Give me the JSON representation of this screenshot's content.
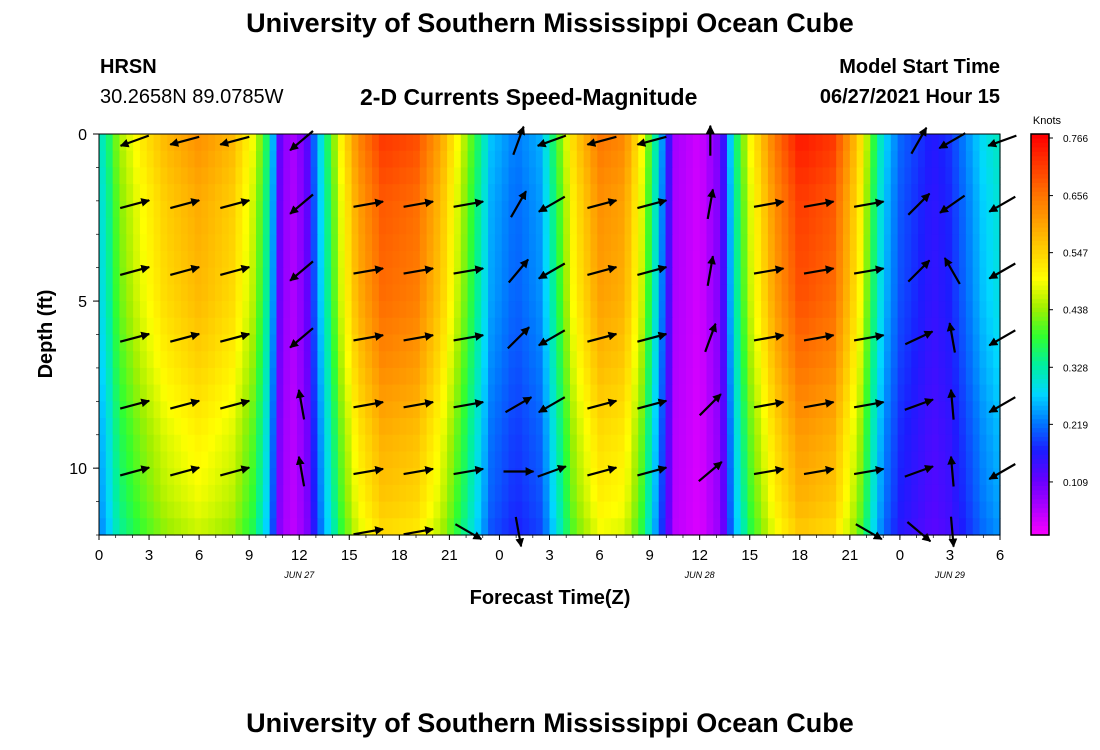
{
  "header": {
    "title": "University of Southern Mississippi Ocean Cube",
    "station": "HRSN",
    "coords": "30.2658N  89.0785W",
    "plot_title": "2-D Currents Speed-Magnitude",
    "model_start_label": "Model Start Time",
    "model_start_value": "06/27/2021 Hour 15"
  },
  "footer": {
    "title": "University of Southern Mississippi Ocean Cube"
  },
  "chart_data": {
    "type": "heatmap",
    "title": "2-D Currents Speed-Magnitude",
    "xlabel": "Forecast Time(Z)",
    "ylabel": "Depth (ft)",
    "x_range_hours": [
      0,
      54
    ],
    "y_range_ft": [
      0,
      12
    ],
    "x_ticks": [
      {
        "h": 0,
        "label": "0"
      },
      {
        "h": 3,
        "label": "3"
      },
      {
        "h": 6,
        "label": "6"
      },
      {
        "h": 9,
        "label": "9"
      },
      {
        "h": 12,
        "label": "12"
      },
      {
        "h": 15,
        "label": "15"
      },
      {
        "h": 18,
        "label": "18"
      },
      {
        "h": 21,
        "label": "21"
      },
      {
        "h": 24,
        "label": "0"
      },
      {
        "h": 27,
        "label": "3"
      },
      {
        "h": 30,
        "label": "6"
      },
      {
        "h": 33,
        "label": "9"
      },
      {
        "h": 36,
        "label": "12"
      },
      {
        "h": 39,
        "label": "15"
      },
      {
        "h": 42,
        "label": "18"
      },
      {
        "h": 45,
        "label": "21"
      },
      {
        "h": 48,
        "label": "0"
      },
      {
        "h": 51,
        "label": "3"
      },
      {
        "h": 54,
        "label": "6"
      }
    ],
    "date_labels": [
      {
        "h": 12,
        "label": "JUN 27"
      },
      {
        "h": 36,
        "label": "JUN 28"
      },
      {
        "h": 51,
        "label": "JUN 29"
      }
    ],
    "y_ticks": [
      {
        "ft": 0,
        "label": "0"
      },
      {
        "ft": 5,
        "label": "5"
      },
      {
        "ft": 10,
        "label": "10"
      }
    ],
    "colorbar": {
      "unit": "Knots",
      "min": 0.0,
      "max": 0.766,
      "ticks": [
        "0.766",
        "0.656",
        "0.547",
        "0.438",
        "0.328",
        "0.219",
        "0.109"
      ],
      "colors": [
        "#ff00ff",
        "#b000ff",
        "#6600ff",
        "#1c1cff",
        "#0078ff",
        "#00d8ff",
        "#00f0a0",
        "#30ff30",
        "#a0f000",
        "#ffff00",
        "#ffd000",
        "#ffa000",
        "#ff7000",
        "#ff3800",
        "#ff0000"
      ]
    },
    "speed_profile_by_hour": [
      {
        "h": 0,
        "s": 0.28
      },
      {
        "h": 0.6,
        "s": 0.34
      },
      {
        "h": 1.2,
        "s": 0.42
      },
      {
        "h": 2.5,
        "s": 0.49
      },
      {
        "h": 4,
        "s": 0.55
      },
      {
        "h": 6,
        "s": 0.59
      },
      {
        "h": 8,
        "s": 0.55
      },
      {
        "h": 9.3,
        "s": 0.46
      },
      {
        "h": 9.8,
        "s": 0.38
      },
      {
        "h": 10.3,
        "s": 0.3
      },
      {
        "h": 10.7,
        "s": 0.12
      },
      {
        "h": 11.5,
        "s": 0.05
      },
      {
        "h": 12.4,
        "s": 0.1
      },
      {
        "h": 13.2,
        "s": 0.26
      },
      {
        "h": 13.8,
        "s": 0.36
      },
      {
        "h": 14.5,
        "s": 0.48
      },
      {
        "h": 15.5,
        "s": 0.6
      },
      {
        "h": 17,
        "s": 0.68
      },
      {
        "h": 19,
        "s": 0.66
      },
      {
        "h": 20.5,
        "s": 0.57
      },
      {
        "h": 21.8,
        "s": 0.44
      },
      {
        "h": 22.8,
        "s": 0.33
      },
      {
        "h": 23.5,
        "s": 0.25
      },
      {
        "h": 25,
        "s": 0.21
      },
      {
        "h": 26.5,
        "s": 0.24
      },
      {
        "h": 27.3,
        "s": 0.35
      },
      {
        "h": 28.5,
        "s": 0.52
      },
      {
        "h": 30,
        "s": 0.62
      },
      {
        "h": 31.5,
        "s": 0.6
      },
      {
        "h": 32.5,
        "s": 0.48
      },
      {
        "h": 33.5,
        "s": 0.28
      },
      {
        "h": 34.5,
        "s": 0.06
      },
      {
        "h": 36,
        "s": 0.03
      },
      {
        "h": 37.3,
        "s": 0.1
      },
      {
        "h": 38,
        "s": 0.3
      },
      {
        "h": 39,
        "s": 0.47
      },
      {
        "h": 40.5,
        "s": 0.62
      },
      {
        "h": 42,
        "s": 0.71
      },
      {
        "h": 44,
        "s": 0.68
      },
      {
        "h": 45.5,
        "s": 0.53
      },
      {
        "h": 46.3,
        "s": 0.38
      },
      {
        "h": 47,
        "s": 0.27
      },
      {
        "h": 48,
        "s": 0.2
      },
      {
        "h": 50,
        "s": 0.15
      },
      {
        "h": 51,
        "s": 0.17
      },
      {
        "h": 52,
        "s": 0.22
      },
      {
        "h": 53,
        "s": 0.27
      },
      {
        "h": 54,
        "s": 0.3
      }
    ],
    "depth_factor": [
      {
        "ft": 0,
        "f": 1.05
      },
      {
        "ft": 2,
        "f": 1.0
      },
      {
        "ft": 5,
        "f": 0.97
      },
      {
        "ft": 7,
        "f": 0.92
      },
      {
        "ft": 9,
        "f": 0.86
      },
      {
        "ft": 11,
        "f": 0.82
      },
      {
        "ft": 12,
        "f": 0.78
      }
    ],
    "vector_depths_ft": [
      0.2,
      2.1,
      4.1,
      6.1,
      8.1,
      10.1,
      11.9
    ],
    "vector_hours": [
      1.3,
      4.3,
      7.3,
      11.3,
      15.3,
      18.3,
      21.3,
      24.3,
      26.3,
      29.3,
      32.3,
      35.8,
      39.3,
      42.3,
      45.3,
      48.3,
      50.3,
      53.3
    ],
    "vector_angles_deg": [
      [
        200,
        195,
        195,
        220,
        null,
        null,
        null,
        70,
        200,
        195,
        195,
        90,
        null,
        null,
        null,
        60,
        210,
        200
      ],
      [
        15,
        15,
        15,
        220,
        10,
        10,
        10,
        60,
        210,
        15,
        15,
        80,
        10,
        10,
        10,
        45,
        215,
        210
      ],
      [
        15,
        15,
        15,
        220,
        10,
        10,
        10,
        50,
        210,
        15,
        15,
        80,
        10,
        10,
        10,
        45,
        120,
        210
      ],
      [
        15,
        15,
        15,
        220,
        10,
        10,
        10,
        45,
        210,
        15,
        15,
        70,
        10,
        10,
        10,
        25,
        100,
        210
      ],
      [
        15,
        15,
        15,
        100,
        10,
        10,
        10,
        30,
        210,
        15,
        15,
        45,
        10,
        10,
        10,
        20,
        95,
        210
      ],
      [
        15,
        15,
        15,
        100,
        10,
        10,
        10,
        0,
        20,
        15,
        15,
        40,
        10,
        10,
        10,
        20,
        95,
        210
      ],
      [
        null,
        null,
        null,
        null,
        10,
        10,
        330,
        280,
        null,
        null,
        null,
        null,
        null,
        null,
        330,
        320,
        275,
        null
      ]
    ]
  }
}
